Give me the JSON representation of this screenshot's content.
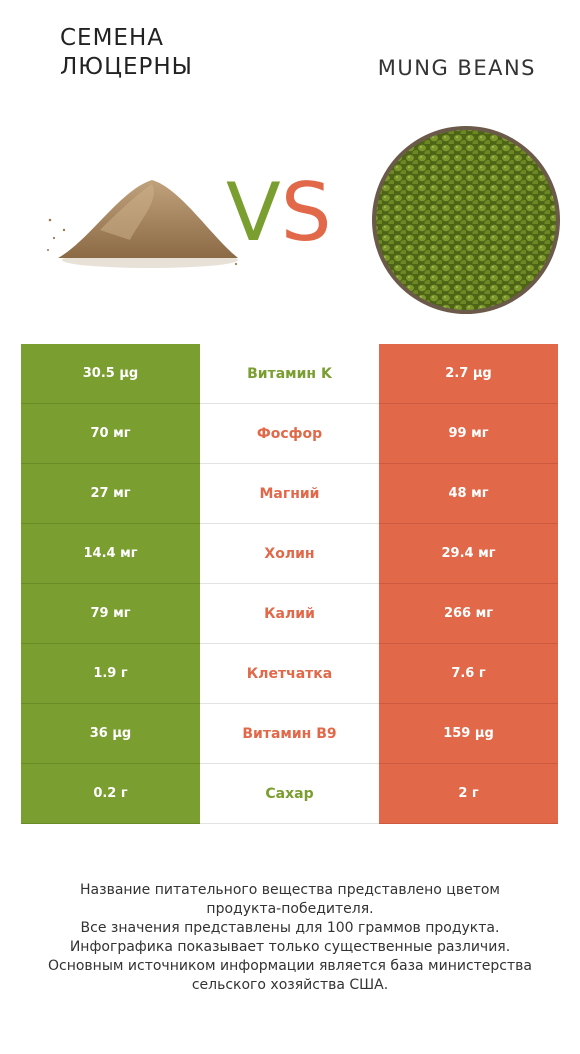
{
  "header": {
    "left_title_line1": "Семена",
    "left_title_line2": "люцерны",
    "right_title": "MUNG BEANS",
    "vs_v": "V",
    "vs_s": "S"
  },
  "colors": {
    "winner_left": "#7a9e2f",
    "winner_right": "#e1694a"
  },
  "images": {
    "left": "alfalfa-seed-pile-image",
    "right": "mung-beans-bowl-image"
  },
  "rows": [
    {
      "nutrient": "Витамин K",
      "left": "30.5 µg",
      "right": "2.7 µg",
      "winner": "left"
    },
    {
      "nutrient": "Фосфор",
      "left": "70 мг",
      "right": "99 мг",
      "winner": "right"
    },
    {
      "nutrient": "Магний",
      "left": "27 мг",
      "right": "48 мг",
      "winner": "right"
    },
    {
      "nutrient": "Холин",
      "left": "14.4 мг",
      "right": "29.4 мг",
      "winner": "right"
    },
    {
      "nutrient": "Калий",
      "left": "79 мг",
      "right": "266 мг",
      "winner": "right"
    },
    {
      "nutrient": "Клетчатка",
      "left": "1.9 г",
      "right": "7.6 г",
      "winner": "right"
    },
    {
      "nutrient": "Витамин B9",
      "left": "36 µg",
      "right": "159 µg",
      "winner": "right"
    },
    {
      "nutrient": "Сахар",
      "left": "0.2 г",
      "right": "2 г",
      "winner": "left"
    }
  ],
  "footer": {
    "line1": "Название питательного вещества представлено цветом",
    "line2": "продукта-победителя.",
    "line3": "Все значения представлены для 100 граммов продукта.",
    "line4": "Инфографика показывает только существенные различия.",
    "line5": "Основным источником информации является база министерства",
    "line6": "сельского хозяйства США."
  }
}
